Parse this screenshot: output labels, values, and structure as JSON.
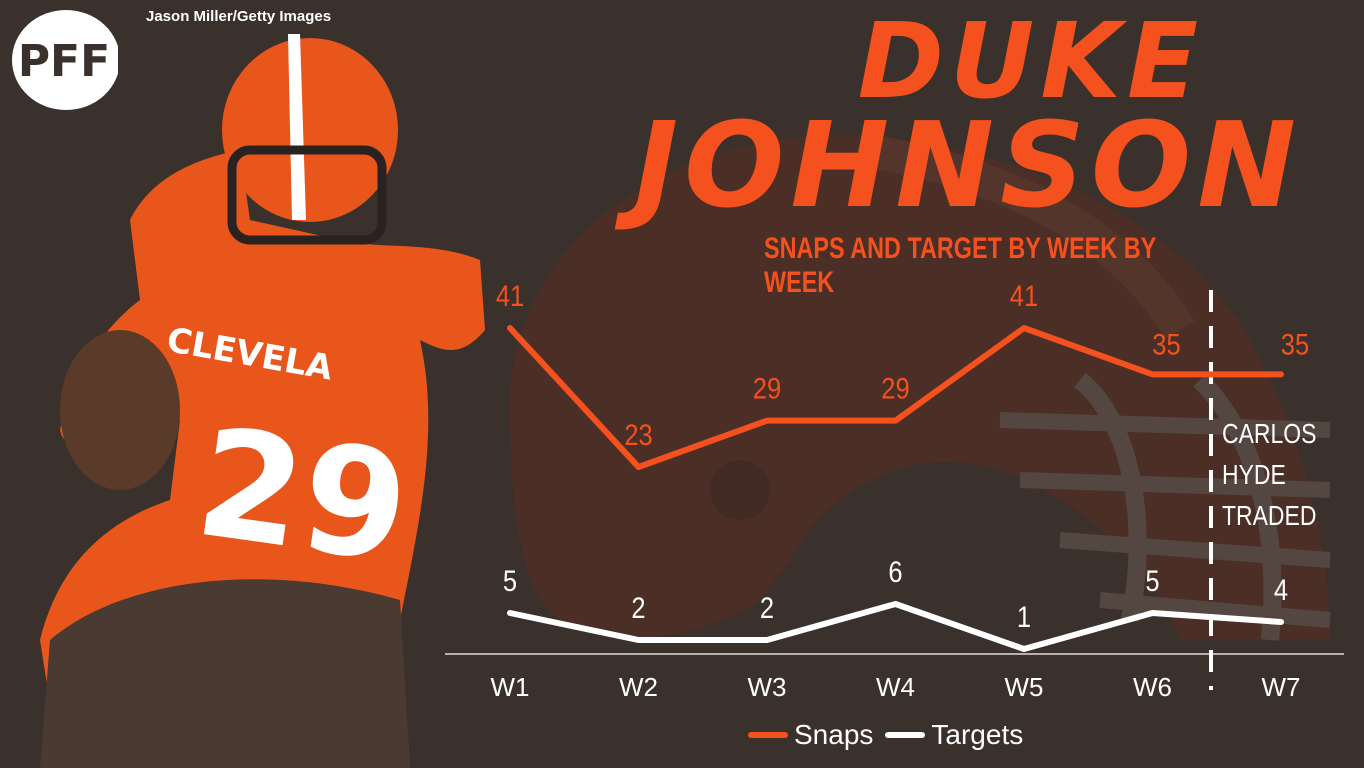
{
  "credit": "Jason Miller/Getty Images",
  "logo_text": "PFF",
  "title_line1": "Duke",
  "title_line2": "Johnson",
  "subtitle": "SNAPS AND TARGET BY WEEK BY WEEK",
  "annotation": [
    "CARLOS",
    "HYDE",
    "TRADED"
  ],
  "colors": {
    "snaps": "#f4511e",
    "targets": "#ffffff",
    "background": "#3a302c"
  },
  "chart_data": {
    "type": "line",
    "title": "SNAPS AND TARGET BY WEEK BY WEEK",
    "categories": [
      "W1",
      "W2",
      "W3",
      "W4",
      "W5",
      "W6",
      "W7"
    ],
    "series": [
      {
        "name": "Snaps",
        "values": [
          41,
          23,
          29,
          29,
          41,
          35,
          35
        ]
      },
      {
        "name": "Targets",
        "values": [
          5,
          2,
          2,
          6,
          1,
          5,
          4
        ]
      }
    ],
    "legend": "bottom-center",
    "grid": false,
    "annotation_between": [
      "W6",
      "W7"
    ]
  }
}
